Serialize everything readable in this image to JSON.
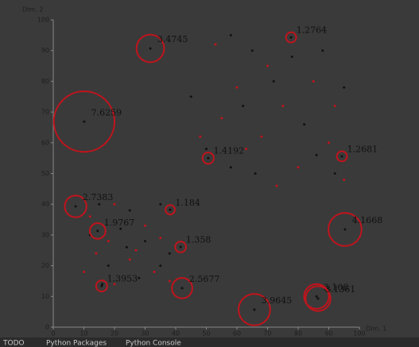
{
  "chart_data": {
    "type": "scatter",
    "xlabel": "Dim. 1",
    "ylabel": "Dim. 2",
    "xlim": [
      0,
      100
    ],
    "ylim": [
      0,
      100
    ],
    "xticks": [
      0,
      10,
      20,
      30,
      40,
      50,
      60,
      70,
      80,
      90,
      100
    ],
    "yticks": [
      0,
      10,
      20,
      30,
      40,
      50,
      60,
      70,
      80,
      90,
      100
    ],
    "series": [
      {
        "color": "#c0141c",
        "x": [
          53,
          70,
          60,
          85,
          92,
          55,
          75,
          68,
          48,
          90,
          63,
          80,
          73,
          95,
          12,
          20,
          30,
          18,
          35,
          25,
          10,
          33,
          20,
          38,
          27,
          14
        ],
        "y": [
          92,
          85,
          78,
          80,
          72,
          68,
          72,
          62,
          62,
          60,
          58,
          52,
          46,
          48,
          36,
          40,
          33,
          28,
          29,
          22,
          18,
          18,
          14,
          15,
          25,
          24
        ]
      },
      {
        "color": "#111111",
        "x": [
          58,
          65,
          78,
          88,
          45,
          62,
          72,
          82,
          95,
          50,
          66,
          86,
          92,
          58,
          15,
          25,
          35,
          22,
          30,
          12,
          38,
          18,
          28,
          24,
          35,
          16
        ],
        "y": [
          95,
          90,
          88,
          90,
          75,
          72,
          80,
          66,
          78,
          58,
          50,
          56,
          50,
          52,
          40,
          38,
          40,
          32,
          28,
          30,
          24,
          20,
          16,
          26,
          20,
          14
        ]
      }
    ],
    "outliers": {
      "color": "#c0141c",
      "x": [
        31.7,
        77.7,
        10.1,
        94.3,
        50.6,
        7.3,
        38.2,
        14.5,
        95.3,
        41.6,
        42.1,
        15.8,
        86,
        86.5,
        65.7
      ],
      "y": [
        90.7,
        94.3,
        66.9,
        55.6,
        55.0,
        39.3,
        38.2,
        31.3,
        31.8,
        26.1,
        12.7,
        13.4,
        10,
        9.3,
        5.7
      ],
      "scores": [
        3.4745,
        1.2764,
        7.6259,
        1.2681,
        1.4192,
        2.7383,
        1.184,
        1.9767,
        4.1668,
        1.358,
        2.5677,
        1.3953,
        3.108,
        3.1361,
        3.9645
      ]
    }
  },
  "status_bar": {
    "items": [
      "TODO",
      "Python Packages",
      "Python Console"
    ]
  }
}
